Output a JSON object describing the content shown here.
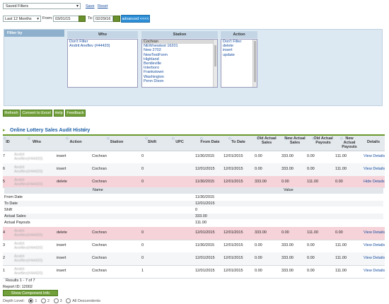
{
  "toolbar": {
    "saved_filters": "Saved Filters",
    "save": "Save",
    "reset": "Reset",
    "date_range": "Last 12 Months",
    "from_label": "From:",
    "from_value": "03/01/15",
    "to_label": "To:",
    "to_value": "02/29/16",
    "advanced": "advanced <<<<"
  },
  "filter_panel": {
    "filter_by": "Filter by",
    "who_header": "Who",
    "who_items": [
      "Don't Filter",
      "Andrit Aneflev (#44420)"
    ],
    "station_header": "Station",
    "station_items": [
      "Cochran",
      "NEWnewtest 16201",
      "New 2702",
      "NewTestForm",
      "Highland",
      "Bentleville",
      "Interboro",
      "Frankstown",
      "Washington",
      "Penn Dixon"
    ],
    "action_header": "Action",
    "action_items": [
      "Don't Filter",
      "delete",
      "insert",
      "update"
    ]
  },
  "buttons": {
    "refresh": "Refresh",
    "convert": "Convert to Excel",
    "help": "Help",
    "feedback": "Feedback"
  },
  "report": {
    "title": "Online Lottery Sales Audit History",
    "columns": [
      "ID",
      "Who",
      "Action",
      "Station",
      "Shift",
      "UPC",
      "From Date",
      "To Date",
      "Old Actual Sales",
      "New Actual Sales",
      "Old Actual Payouts",
      "New Actual Payouts",
      "Details"
    ],
    "rows": [
      {
        "id": "7",
        "who": "Andrit Aneflev(#44420)",
        "action": "insert",
        "station": "Cochran",
        "shift": "0",
        "upc": "",
        "from": "11/30/2015",
        "to": "12/01/2015",
        "old_sales": "0.00",
        "new_sales": "333.00",
        "old_payouts": "0.00",
        "new_payouts": "111.00",
        "details": "View Details"
      },
      {
        "id": "6",
        "who": "Andrit Aneflev(#44420)",
        "action": "insert",
        "station": "Cochran",
        "shift": "0",
        "upc": "",
        "from": "12/01/2015",
        "to": "12/01/2015",
        "old_sales": "0.00",
        "new_sales": "333.00",
        "old_payouts": "0.00",
        "new_payouts": "111.00",
        "details": "View Details"
      },
      {
        "id": "5",
        "who": "Andrit Aneflev(#44420)",
        "action": "delete",
        "station": "Cochran",
        "shift": "0",
        "upc": "",
        "from": "11/30/2015",
        "to": "12/01/2015",
        "old_sales": "333.00",
        "new_sales": "0.00",
        "old_payouts": "111.00",
        "new_payouts": "0.00",
        "details": "Hide Details"
      },
      {
        "id": "4",
        "who": "Andrit Aneflev(#44420)",
        "action": "delete",
        "station": "Cochran",
        "shift": "0",
        "upc": "",
        "from": "12/01/2015",
        "to": "12/01/2015",
        "old_sales": "333.00",
        "new_sales": "0.00",
        "old_payouts": "111.00",
        "new_payouts": "0.00",
        "details": "View Details"
      },
      {
        "id": "3",
        "who": "Andrit Aneflev(#44420)",
        "action": "insert",
        "station": "Cochran",
        "shift": "0",
        "upc": "",
        "from": "11/30/2015",
        "to": "12/01/2015",
        "old_sales": "0.00",
        "new_sales": "333.00",
        "old_payouts": "0.00",
        "new_payouts": "111.00",
        "details": "View Details"
      },
      {
        "id": "2",
        "who": "Andrit Aneflev(#44420)",
        "action": "insert",
        "station": "Cochran",
        "shift": "0",
        "upc": "",
        "from": "12/01/2015",
        "to": "12/01/2015",
        "old_sales": "0.00",
        "new_sales": "333.00",
        "old_payouts": "0.00",
        "new_payouts": "111.00",
        "details": "View Details"
      },
      {
        "id": "1",
        "who": "Andrit Aneflev(#44420)",
        "action": "insert",
        "station": "Cochran",
        "shift": "1",
        "upc": "",
        "from": "12/01/2015",
        "to": "12/01/2015",
        "old_sales": "0.00",
        "new_sales": "333.00",
        "old_payouts": "0.00",
        "new_payouts": "111.00",
        "details": "View Details"
      }
    ],
    "detail": {
      "name_header": "Name",
      "value_header": "Value",
      "rows": [
        {
          "name": "From Date",
          "value": "11/30/2015"
        },
        {
          "name": "To Date",
          "value": "12/01/2015"
        },
        {
          "name": "Shift",
          "value": "0"
        },
        {
          "name": "Actual Sales",
          "value": "333.00"
        },
        {
          "name": "Actual Payouts",
          "value": "111.00"
        }
      ]
    },
    "results": "Results 1 - 7 of 7",
    "report_id": "Report ID: 12002",
    "show_component": "Show Component Info",
    "depth_label": "Depth Level:",
    "depth_options": [
      "1",
      "2",
      "3",
      "All Descendents"
    ],
    "colors": {
      "accent": "#2c8ed6",
      "green": "#71a03a",
      "pink": "#f6d3d9",
      "link": "#1a4fa0"
    }
  }
}
